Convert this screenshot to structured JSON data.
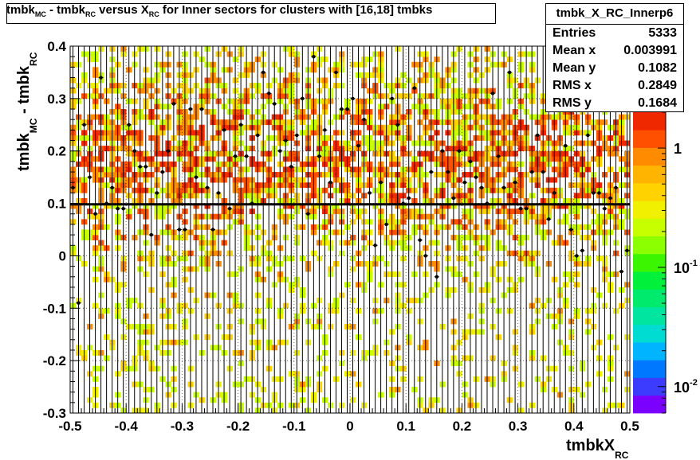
{
  "title": {
    "main": "tmbk",
    "sub1": "MC",
    "mid1": " - tmbk",
    "sub2": "RC",
    "mid2": " versus X",
    "sub3": "RC",
    "tail": " for Inner sectors for clusters with [16,18] tmbks"
  },
  "stats": {
    "name": "tmbk_X_RC_Innerp6",
    "rows": [
      {
        "label": "Entries",
        "value": "5333"
      },
      {
        "label": "Mean x",
        "value": "0.003991"
      },
      {
        "label": "Mean y",
        "value": "0.1082"
      },
      {
        "label": "RMS x",
        "value": "0.2849"
      },
      {
        "label": "RMS y",
        "value": "0.1684"
      }
    ]
  },
  "colors": {
    "palette": [
      "#7a00ff",
      "#3c3cff",
      "#0078ff",
      "#00b4ff",
      "#00dcd2",
      "#00e6a0",
      "#00eb6e",
      "#00f03c",
      "#3cf500",
      "#8cff00",
      "#c8ff00",
      "#f0f000",
      "#ffd200",
      "#ffb400",
      "#ff8c00",
      "#ff5000",
      "#f02800"
    ],
    "fit_line": "#000000",
    "markers": "#000000"
  },
  "chart_data": {
    "type": "heatmap",
    "xlabel_main": "tmbkX",
    "xlabel_sub": "RC",
    "ylabel_main": "tmbk",
    "ylabel_sub1": "MC",
    "ylabel_mid": " - tmbk",
    "ylabel_sub2": "RC",
    "xlim": [
      -0.5,
      0.5
    ],
    "ylim": [
      -0.3,
      0.4
    ],
    "x_ticks": [
      {
        "v": -0.5,
        "label": "-0.5"
      },
      {
        "v": -0.4,
        "label": "-0.4"
      },
      {
        "v": -0.3,
        "label": "-0.3"
      },
      {
        "v": -0.2,
        "label": "-0.2"
      },
      {
        "v": -0.1,
        "label": "-0.1"
      },
      {
        "v": 0,
        "label": "0"
      },
      {
        "v": 0.1,
        "label": "0.1"
      },
      {
        "v": 0.2,
        "label": "0.2"
      },
      {
        "v": 0.3,
        "label": "0.3"
      },
      {
        "v": 0.4,
        "label": "0.4"
      },
      {
        "v": 0.5,
        "label": "0.5"
      }
    ],
    "y_ticks": [
      {
        "v": -0.3,
        "label": "-0.3"
      },
      {
        "v": -0.2,
        "label": "-0.2"
      },
      {
        "v": -0.1,
        "label": "-0.1"
      },
      {
        "v": 0,
        "label": "0"
      },
      {
        "v": 0.1,
        "label": "0.1"
      },
      {
        "v": 0.2,
        "label": "0.2"
      },
      {
        "v": 0.3,
        "label": "0.3"
      },
      {
        "v": 0.4,
        "label": "0.4"
      }
    ],
    "z_scale": "log",
    "z_range": [
      0.006,
      2
    ],
    "z_ticks": [
      {
        "v": 1,
        "label": "1",
        "exp": ""
      },
      {
        "v": 0.1,
        "label": "10",
        "exp": "-1"
      },
      {
        "v": 0.01,
        "label": "10",
        "exp": "-2"
      }
    ],
    "grid": true,
    "fit_line": {
      "x": [
        -0.5,
        0.5
      ],
      "y": [
        0.0982,
        0.0982
      ]
    },
    "profile": {
      "x": [
        -0.495,
        -0.485,
        -0.475,
        -0.465,
        -0.455,
        -0.445,
        -0.435,
        -0.425,
        -0.415,
        -0.405,
        -0.395,
        -0.385,
        -0.375,
        -0.365,
        -0.355,
        -0.345,
        -0.335,
        -0.325,
        -0.315,
        -0.305,
        -0.295,
        -0.285,
        -0.275,
        -0.265,
        -0.255,
        -0.245,
        -0.235,
        -0.225,
        -0.215,
        -0.205,
        -0.195,
        -0.185,
        -0.175,
        -0.165,
        -0.155,
        -0.145,
        -0.135,
        -0.125,
        -0.115,
        -0.105,
        -0.095,
        -0.085,
        -0.075,
        -0.065,
        -0.055,
        -0.045,
        -0.035,
        -0.025,
        -0.015,
        -0.005,
        0.005,
        0.015,
        0.025,
        0.035,
        0.045,
        0.055,
        0.065,
        0.075,
        0.085,
        0.095,
        0.105,
        0.115,
        0.125,
        0.135,
        0.145,
        0.155,
        0.165,
        0.175,
        0.185,
        0.195,
        0.205,
        0.215,
        0.225,
        0.235,
        0.245,
        0.255,
        0.265,
        0.275,
        0.285,
        0.295,
        0.305,
        0.315,
        0.325,
        0.335,
        0.345,
        0.355,
        0.365,
        0.375,
        0.385,
        0.395,
        0.405,
        0.415,
        0.425,
        0.435,
        0.445,
        0.455,
        0.465,
        0.475,
        0.485,
        0.495
      ],
      "y": [
        0.13,
        -0.09,
        0.25,
        0.15,
        0.08,
        0.34,
        0.1,
        0.13,
        0.09,
        0.09,
        0.25,
        0.2,
        0.17,
        0.17,
        0.04,
        0.12,
        0.16,
        0.2,
        0.29,
        0.05,
        0.05,
        0.28,
        0.15,
        0.28,
        0.13,
        0.05,
        0.12,
        0.24,
        0.09,
        0.19,
        0.25,
        0.19,
        0.1,
        0.23,
        0.35,
        0.31,
        0.29,
        0.2,
        0.22,
        0.17,
        0.23,
        0.3,
        0.08,
        0.38,
        0.19,
        0.24,
        0.14,
        0.35,
        0.28,
        0.28,
        0.3,
        0.21,
        0.26,
        0.12,
        0.02,
        0.14,
        0.06,
        0.3,
        0.25,
        0.1,
        0.11,
        0.32,
        0.03,
        0.0,
        0.16,
        -0.04,
        0.2,
        0.16,
        0.11,
        0.2,
        0.14,
        0.18,
        0.15,
        0.13,
        0.1,
        0.31,
        0.19,
        0.13,
        0.35,
        0.14,
        0.09,
        0.09,
        0.16,
        0.23,
        0.16,
        0.07,
        0.12,
        0.28,
        0.21,
        0.05,
        0.0,
        0.01,
        0.23,
        0.12,
        0.12,
        0.09,
        0.11,
        0.13,
        -0.03,
        0.01
      ]
    }
  }
}
